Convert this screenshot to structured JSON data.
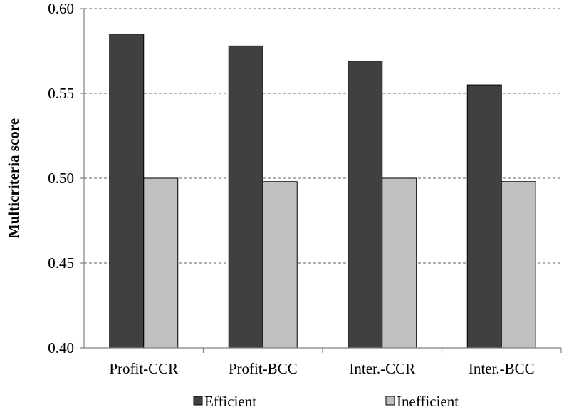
{
  "chart_data": {
    "type": "bar",
    "title": "",
    "xlabel": "",
    "ylabel": "Multicriteria score",
    "categories": [
      "Profit-CCR",
      "Profit-BCC",
      "Inter.-CCR",
      "Inter.-BCC"
    ],
    "series": [
      {
        "name": "Efficient",
        "values": [
          0.585,
          0.578,
          0.569,
          0.555
        ],
        "color": "#404040"
      },
      {
        "name": "Inefficient",
        "values": [
          0.5,
          0.498,
          0.5,
          0.498
        ],
        "color": "#c0c0c0"
      }
    ],
    "ylim": [
      0.4,
      0.6
    ],
    "yticks": [
      "0.40",
      "0.45",
      "0.50",
      "0.55",
      "0.60"
    ],
    "grid": "horizontal dashed",
    "legend_position": "bottom"
  }
}
